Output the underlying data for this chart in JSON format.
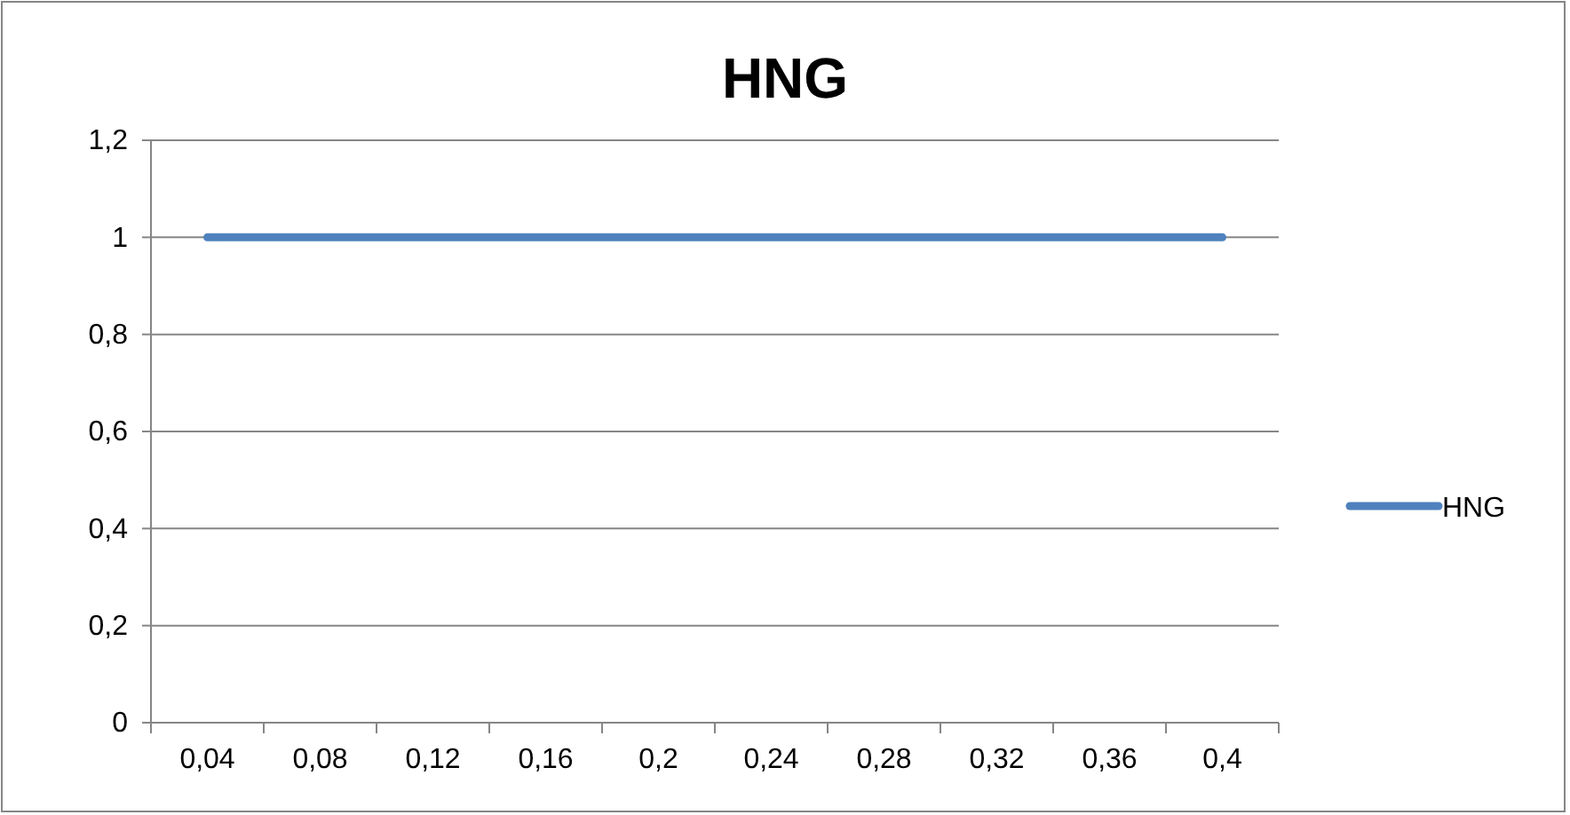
{
  "chart_data": {
    "type": "line",
    "title": "HNG",
    "categories": [
      "0,04",
      "0,08",
      "0,12",
      "0,16",
      "0,2",
      "0,24",
      "0,28",
      "0,32",
      "0,36",
      "0,4"
    ],
    "series": [
      {
        "name": "HNG",
        "color": "#4f81bd",
        "values": [
          1,
          1,
          1,
          1,
          1,
          1,
          1,
          1,
          1,
          1
        ]
      }
    ],
    "ylim": [
      0,
      1.2
    ],
    "yticks": [
      0,
      {
        "value": 0.2,
        "label": "0,2"
      },
      {
        "value": 0.4,
        "label": "0,4"
      },
      {
        "value": 0.6,
        "label": "0,6"
      },
      {
        "value": 0.8,
        "label": "0,8"
      },
      1,
      {
        "value": 1.2,
        "label": "1,2"
      }
    ],
    "grid": "y",
    "legend": "right",
    "marker": "none",
    "line_style": "solid"
  }
}
